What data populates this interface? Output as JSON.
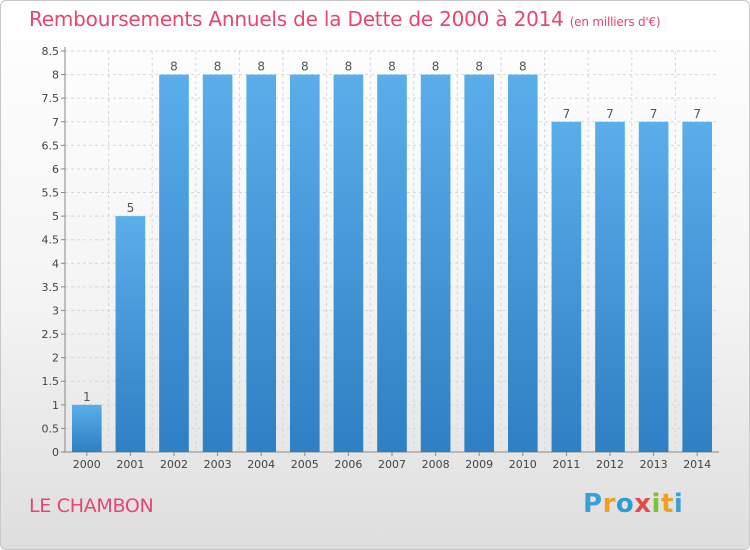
{
  "chart_data": {
    "type": "bar",
    "title": "Remboursements Annuels de la Dette de 2000 à 2014",
    "unit": "(en milliers d'€)",
    "categories": [
      "2000",
      "2001",
      "2002",
      "2003",
      "2004",
      "2005",
      "2006",
      "2007",
      "2008",
      "2009",
      "2010",
      "2011",
      "2012",
      "2013",
      "2014"
    ],
    "values": [
      1,
      5,
      8,
      8,
      8,
      8,
      8,
      8,
      8,
      8,
      8,
      7,
      7,
      7,
      7
    ],
    "ylim": [
      0,
      8.5
    ],
    "yticks": [
      "0",
      "0.5",
      "1",
      "1.5",
      "2",
      "2.5",
      "3",
      "3.5",
      "4",
      "4.5",
      "5",
      "5.5",
      "6",
      "6.5",
      "7",
      "7.5",
      "8",
      "8.5"
    ],
    "grid": true,
    "bar_color": "#3a8fd6"
  },
  "footer": {
    "place": "LE CHAMBON",
    "logo": [
      "P",
      "r",
      "o",
      "x",
      "i",
      "t",
      "i"
    ]
  }
}
